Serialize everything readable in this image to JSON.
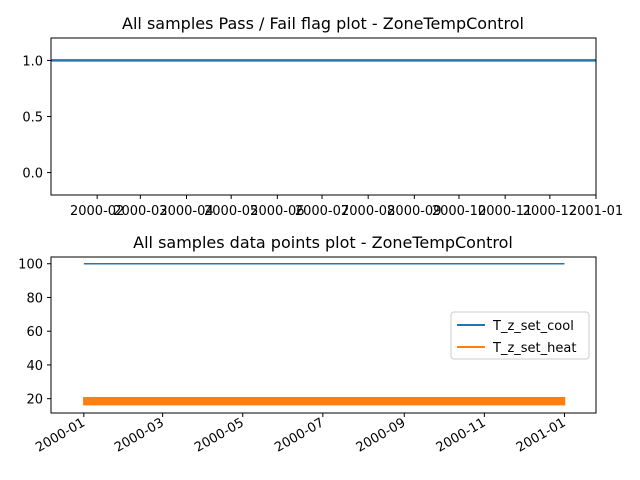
{
  "colors": {
    "series_blue": "#1f77b4",
    "series_orange": "#ff7f0e",
    "axis": "#000000",
    "legend_border": "#cccccc"
  },
  "chart_data": [
    {
      "type": "line",
      "title": "All samples Pass / Fail flag plot - ZoneTempControl",
      "xlabel": "",
      "ylabel": "",
      "xlim": [
        "2000-01-01",
        "2001-01-01"
      ],
      "ylim": [
        -0.2,
        1.2
      ],
      "y_ticks": [
        0.0,
        0.5,
        1.0
      ],
      "y_tick_labels": [
        "0.0",
        "0.5",
        "1.0"
      ],
      "x_tick_labels": [
        "2000-02",
        "2000-03",
        "2000-04",
        "2000-05",
        "2000-06",
        "2000-07",
        "2000-08",
        "2000-09",
        "2000-10",
        "2000-11",
        "2000-12",
        "2001-01"
      ],
      "x_tick_dates": [
        "2000-02-01",
        "2000-03-01",
        "2000-04-01",
        "2000-05-01",
        "2000-06-01",
        "2000-07-01",
        "2000-08-01",
        "2000-09-01",
        "2000-10-01",
        "2000-11-01",
        "2000-12-01",
        "2001-01-01"
      ],
      "x_tick_rotation": 0,
      "grid": false,
      "series": [
        {
          "color": "#1f77b4",
          "x": [
            "2000-01-01",
            "2001-01-01"
          ],
          "values": [
            1.0,
            1.0
          ]
        }
      ]
    },
    {
      "type": "line",
      "title": "All samples data points plot - ZoneTempControl",
      "xlabel": "",
      "ylabel": "",
      "xlim": [
        "1999-12-07",
        "2001-01-25"
      ],
      "ylim": [
        11.5,
        104
      ],
      "y_ticks": [
        20,
        40,
        60,
        80,
        100
      ],
      "y_tick_labels": [
        "20",
        "40",
        "60",
        "80",
        "100"
      ],
      "x_tick_labels": [
        "2000-01",
        "2000-03",
        "2000-05",
        "2000-07",
        "2000-09",
        "2000-11",
        "2001-01"
      ],
      "x_tick_dates": [
        "2000-01-01",
        "2000-03-01",
        "2000-05-01",
        "2000-07-01",
        "2000-09-01",
        "2000-11-01",
        "2001-01-01"
      ],
      "x_tick_rotation": 30,
      "grid": false,
      "legend_position": "center-right",
      "series": [
        {
          "name": "T_z_set_cool",
          "color": "#1f77b4",
          "x": [
            "2000-01-01",
            "2001-01-01"
          ],
          "values": [
            100,
            100
          ]
        },
        {
          "name": "T_z_set_heat",
          "color": "#ff7f0e",
          "x": [
            "2000-01-01",
            "2001-01-01"
          ],
          "band": [
            16,
            21
          ]
        }
      ]
    }
  ]
}
